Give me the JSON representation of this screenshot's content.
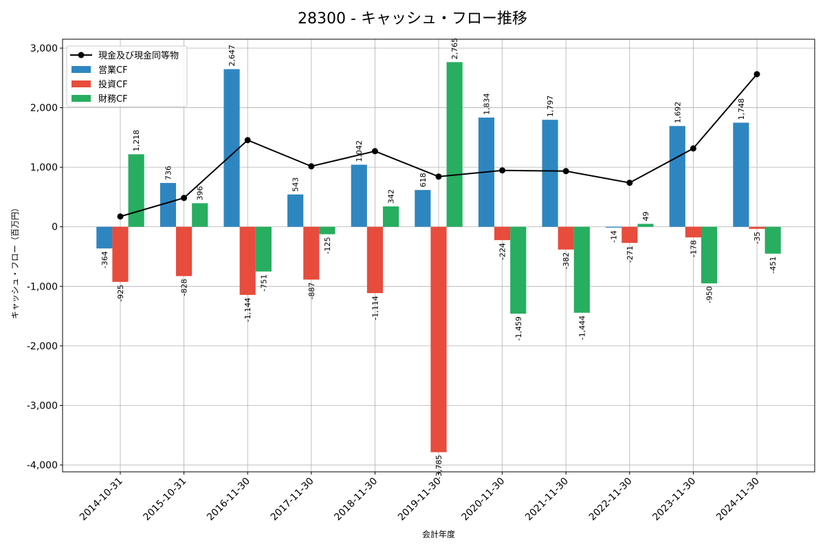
{
  "chart_data": {
    "type": "bar",
    "title": "28300 - キャッシュ・フロー推移",
    "xlabel": "会計年度",
    "ylabel": "キャッシュ・フロー（百万円）",
    "ylim": [
      -4115,
      3150
    ],
    "yticks": [
      3000,
      2000,
      1000,
      0,
      -1000,
      -2000,
      -3000,
      -4000
    ],
    "ytick_labels": [
      "3,000",
      "2,000",
      "1,000",
      "0",
      "-1,000",
      "-2,000",
      "-3,000",
      "-4,000"
    ],
    "grid": true,
    "legend_position": "top-left",
    "categories": [
      "2014-10-31",
      "2015-10-31",
      "2016-11-30",
      "2017-11-30",
      "2018-11-30",
      "2019-11-30",
      "2020-11-30",
      "2021-11-30",
      "2022-11-30",
      "2023-11-30",
      "2024-11-30"
    ],
    "series": [
      {
        "name": "営業CF",
        "type": "bar",
        "color": "#2e86c1",
        "values": [
          -364,
          736,
          2647,
          543,
          1042,
          618,
          1834,
          1797,
          -14,
          1692,
          1748
        ]
      },
      {
        "name": "投資CF",
        "type": "bar",
        "color": "#e74c3c",
        "values": [
          -925,
          -828,
          -1144,
          -887,
          -1114,
          -3785,
          -224,
          -382,
          -271,
          -178,
          -35
        ]
      },
      {
        "name": "財務CF",
        "type": "bar",
        "color": "#27ae60",
        "values": [
          1218,
          396,
          -751,
          -125,
          342,
          2765,
          -1459,
          -1444,
          49,
          -950,
          -451
        ]
      },
      {
        "name": "現金及び現金同等物",
        "type": "line",
        "color": "#000000",
        "values": [
          173,
          485,
          1455,
          1016,
          1270,
          843,
          947,
          935,
          739,
          1316,
          2563
        ]
      }
    ]
  }
}
